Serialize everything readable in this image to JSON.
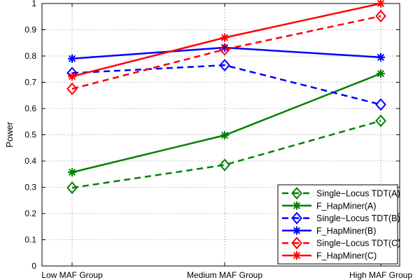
{
  "chart_data": {
    "type": "line",
    "categories": [
      "Low MAF Group",
      "Medium MAF Group",
      "High MAF Group"
    ],
    "xlabel": "",
    "ylabel": "Power",
    "ylim": [
      0,
      1
    ],
    "yticks": [
      "0",
      "0.1",
      "0.2",
      "0.3",
      "0.4",
      "0.5",
      "0.6",
      "0.7",
      "0.8",
      "0.9",
      "1"
    ],
    "grid": true,
    "legend_position": "bottom-right",
    "series": [
      {
        "name": "Single−Locus TDT(A)",
        "color": "#008000",
        "dash": true,
        "marker": "diamond",
        "values": [
          0.298,
          0.385,
          0.553
        ]
      },
      {
        "name": "F_HapMiner(A)",
        "color": "#008000",
        "dash": false,
        "marker": "star",
        "values": [
          0.357,
          0.498,
          0.733
        ]
      },
      {
        "name": "Single−Locus TDT(B)",
        "color": "#0000ff",
        "dash": true,
        "marker": "diamond",
        "values": [
          0.735,
          0.765,
          0.615
        ]
      },
      {
        "name": "F_HapMiner(B)",
        "color": "#0000ff",
        "dash": false,
        "marker": "star",
        "values": [
          0.79,
          0.832,
          0.795
        ]
      },
      {
        "name": "Single−Locus TDT(C)",
        "color": "#ff0000",
        "dash": true,
        "marker": "diamond",
        "values": [
          0.675,
          0.825,
          0.952
        ]
      },
      {
        "name": "F_HapMiner(C)",
        "color": "#ff0000",
        "dash": false,
        "marker": "star",
        "values": [
          0.722,
          0.87,
          1.0
        ]
      }
    ]
  }
}
